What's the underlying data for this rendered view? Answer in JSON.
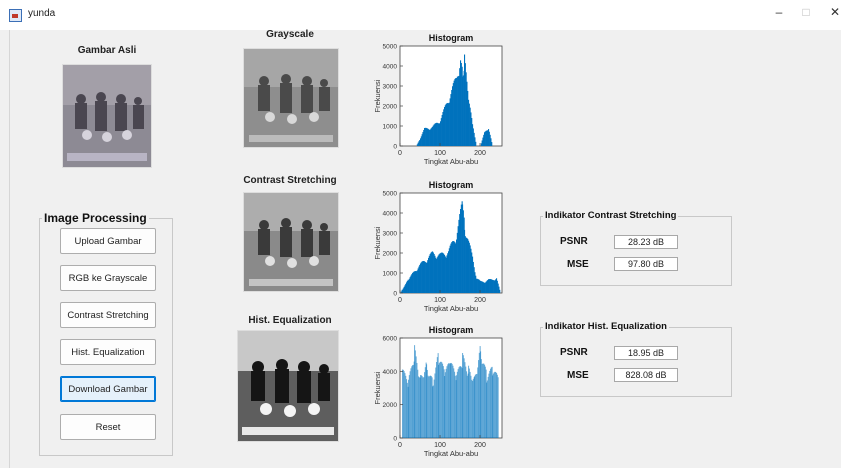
{
  "window": {
    "title": "yunda",
    "minimize": "–",
    "maximize": "□",
    "close": "✕"
  },
  "images": {
    "original_label": "Gambar Asli",
    "grayscale_label": "Grayscale",
    "contrast_label": "Contrast Stretching",
    "equalization_label": "Hist. Equalization"
  },
  "processing": {
    "title": "Image Processing",
    "buttons": [
      "Upload Gambar",
      "RGB ke Grayscale",
      "Contrast Stretching",
      "Hist. Equalization",
      "Download Gambar",
      "Reset"
    ]
  },
  "indicators": {
    "contrast": {
      "title": "Indikator Contrast Stretching",
      "psnr_label": "PSNR",
      "psnr": "28.23 dB",
      "mse_label": "MSE",
      "mse": "97.80 dB"
    },
    "equalization": {
      "title": "Indikator Hist. Equalization",
      "psnr_label": "PSNR",
      "psnr": "18.95 dB",
      "mse_label": "MSE",
      "mse": "828.08 dB"
    }
  },
  "chart_data": [
    {
      "type": "bar",
      "title": "Histogram",
      "xlabel": "Tingkat Abu-abu",
      "ylabel": "Frekuensi",
      "xlim": [
        0,
        255
      ],
      "ylim": [
        0,
        5000
      ],
      "xticks": [
        0,
        100,
        200
      ],
      "yticks": [
        0,
        1000,
        2000,
        3000,
        4000,
        5000
      ],
      "color": "#0072bd",
      "x": [
        20,
        40,
        60,
        80,
        100,
        120,
        140,
        150,
        155,
        160,
        170,
        180,
        190,
        200,
        210,
        220,
        230
      ],
      "values": [
        0,
        0,
        900,
        1000,
        1400,
        2500,
        3600,
        4700,
        3900,
        4600,
        2800,
        1100,
        0,
        0,
        700,
        1000,
        0
      ]
    },
    {
      "type": "bar",
      "title": "Histogram",
      "xlabel": "Tingkat Abu-abu",
      "ylabel": "Frekuensi",
      "xlim": [
        0,
        255
      ],
      "ylim": [
        0,
        5000
      ],
      "xticks": [
        0,
        100,
        200
      ],
      "yticks": [
        0,
        1000,
        2000,
        3000,
        4000,
        5000
      ],
      "color": "#0072bd",
      "x": [
        0,
        5,
        20,
        40,
        60,
        80,
        100,
        120,
        140,
        150,
        155,
        160,
        170,
        180,
        190,
        200,
        210,
        220,
        230,
        240,
        250
      ],
      "values": [
        0,
        200,
        700,
        1300,
        1700,
        2100,
        2000,
        2200,
        3100,
        4200,
        4800,
        3600,
        2700,
        1900,
        800,
        600,
        600,
        700,
        700,
        800,
        0
      ]
    },
    {
      "type": "bar",
      "title": "Histogram",
      "xlabel": "Tingkat Abu-abu",
      "ylabel": "Frekuensi",
      "xlim": [
        0,
        255
      ],
      "ylim": [
        0,
        6000
      ],
      "xticks": [
        0,
        100,
        200
      ],
      "yticks": [
        0,
        2000,
        4000,
        6000
      ],
      "color": "#0072bd",
      "x": [
        5,
        20,
        35,
        50,
        65,
        80,
        95,
        110,
        125,
        140,
        155,
        170,
        185,
        200,
        215,
        230,
        245
      ],
      "values": [
        4200,
        3500,
        5600,
        3900,
        4800,
        3600,
        5200,
        4100,
        4700,
        3800,
        5100,
        4400,
        3900,
        5800,
        4000,
        4300,
        3700
      ]
    }
  ]
}
